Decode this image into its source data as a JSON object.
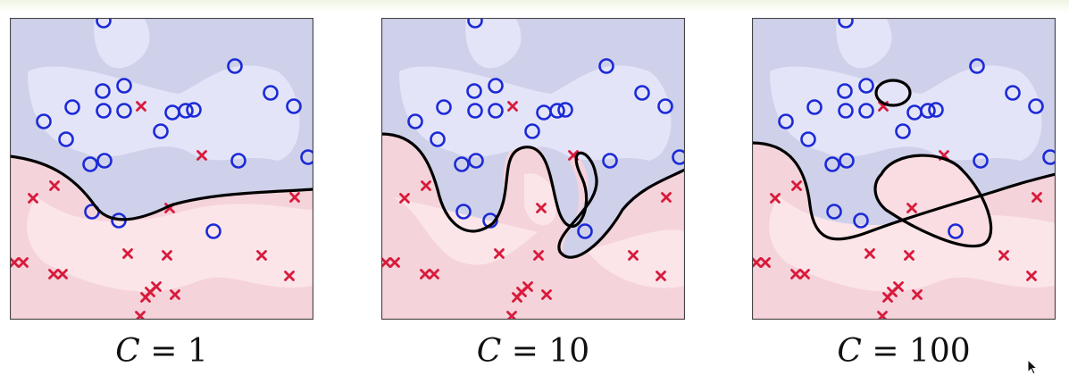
{
  "panels": [
    {
      "c_var": "C",
      "equals": " = ",
      "c_value": "1"
    },
    {
      "c_var": "C",
      "equals": " = ",
      "c_value": "10"
    },
    {
      "c_var": "C",
      "equals": " = ",
      "c_value": "100"
    }
  ],
  "colors": {
    "positive_region": "#d2d4f0",
    "positive_core": "#e6e6fb",
    "negative_region": "#f5d2d8",
    "negative_core": "#fbe4e8",
    "circle_marker": "#1b2ad6",
    "cross_marker": "#d81b3c",
    "boundary": "#000000"
  },
  "icons": {
    "circle": "circle-marker-icon",
    "cross": "cross-marker-icon",
    "cursor": "mouse-cursor-icon"
  }
}
